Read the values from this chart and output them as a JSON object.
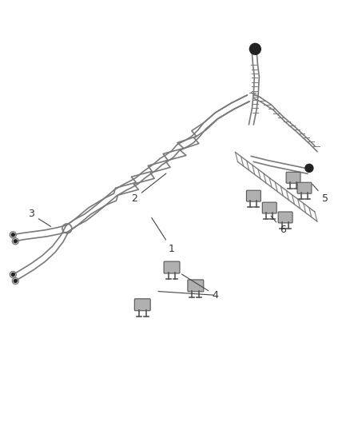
{
  "background_color": "#ffffff",
  "figure_width": 4.38,
  "figure_height": 5.33,
  "dpi": 100,
  "line_color": "#7a7a7a",
  "dark_color": "#222222",
  "label_color": "#333333",
  "label_fontsize": 9,
  "connector_line_color": "#444444",
  "part_color": "#666666",
  "clip_color": "#555555",
  "clip_face": "#aaaaaa"
}
